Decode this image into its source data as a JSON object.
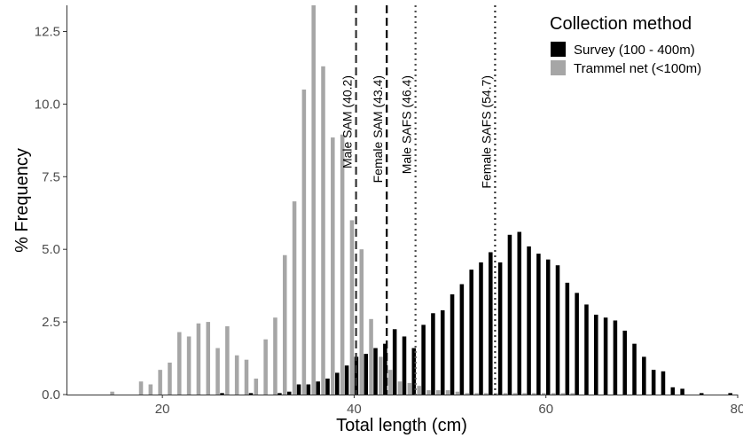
{
  "chart_data": {
    "type": "bar",
    "xlabel": "Total length (cm)",
    "ylabel": "% Frequency",
    "xlim": [
      10,
      80
    ],
    "ylim": [
      0,
      13.4
    ],
    "x_ticks": [
      20,
      40,
      60,
      80
    ],
    "y_ticks": [
      0.0,
      2.5,
      5.0,
      7.5,
      10.0,
      12.5
    ],
    "y_tick_labels": [
      "0.0",
      "2.5",
      "5.0",
      "7.5",
      "10.0",
      "12.5"
    ],
    "grid": false,
    "legend": {
      "title": "Collection method",
      "placement": "top-right"
    },
    "series": [
      {
        "name": "Survey (100 - 400m)",
        "color": "#000000",
        "x": [
          26,
          29,
          32,
          33,
          34,
          35,
          36,
          37,
          38,
          39,
          40,
          41,
          42,
          43,
          44,
          45,
          46,
          47,
          48,
          49,
          50,
          51,
          52,
          53,
          54,
          55,
          56,
          57,
          58,
          59,
          60,
          61,
          62,
          63,
          64,
          65,
          66,
          67,
          68,
          69,
          70,
          71,
          72,
          73,
          74,
          76,
          79
        ],
        "values": [
          0.05,
          0.05,
          0.05,
          0.1,
          0.35,
          0.35,
          0.45,
          0.55,
          0.75,
          1.0,
          1.3,
          1.4,
          1.6,
          1.75,
          2.25,
          2.0,
          1.6,
          2.4,
          2.8,
          2.9,
          3.45,
          3.8,
          4.3,
          4.55,
          4.9,
          4.55,
          5.5,
          5.6,
          5.1,
          4.85,
          4.65,
          4.45,
          3.85,
          3.5,
          3.1,
          2.75,
          2.65,
          2.55,
          2.2,
          1.75,
          1.3,
          0.85,
          0.8,
          0.25,
          0.2,
          0.05,
          0.05
        ]
      },
      {
        "name": "Trammel net (<100m)",
        "color": "#a6a6a6",
        "x": [
          15,
          18,
          19,
          20,
          21,
          22,
          23,
          24,
          25,
          26,
          27,
          28,
          29,
          30,
          31,
          32,
          33,
          34,
          35,
          36,
          37,
          38,
          39,
          40,
          41,
          42,
          43,
          44,
          45,
          46,
          47,
          48,
          49,
          50,
          51,
          52,
          53,
          54,
          55,
          56,
          57,
          58,
          59,
          60,
          61,
          62,
          63
        ],
        "values": [
          0.1,
          0.45,
          0.35,
          0.85,
          1.1,
          2.15,
          2.0,
          2.45,
          2.5,
          1.6,
          2.35,
          1.35,
          1.2,
          0.55,
          1.9,
          2.65,
          4.8,
          6.65,
          10.5,
          13.4,
          11.3,
          8.85,
          8.95,
          6.0,
          5.0,
          2.6,
          1.3,
          0.85,
          0.45,
          0.4,
          0.3,
          0.15,
          0.15,
          0.15,
          0.1,
          0.05,
          0.05,
          0.05,
          0.05,
          0.05,
          0.05,
          0.05,
          0.05,
          0.05,
          0.05,
          0.05,
          0.05
        ]
      }
    ],
    "reference_lines": [
      {
        "label": "Male SAM (40.2)",
        "x": 40.2,
        "style": "dashed",
        "color": "#333333"
      },
      {
        "label": "Female SAM (43.4)",
        "x": 43.4,
        "style": "dashed",
        "color": "#000000"
      },
      {
        "label": "Male SAFS (46.4)",
        "x": 46.4,
        "style": "dotted",
        "color": "#4d4d4d"
      },
      {
        "label": "Female SAFS (54.7)",
        "x": 54.7,
        "style": "dotted",
        "color": "#333333"
      }
    ]
  }
}
